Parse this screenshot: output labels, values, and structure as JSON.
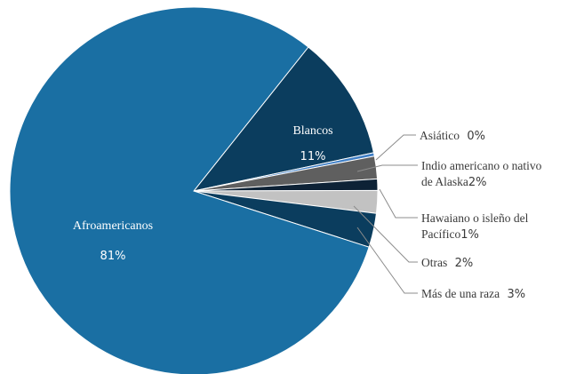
{
  "chart_data": {
    "type": "pie",
    "slices": [
      {
        "name": "Blancos",
        "value": 11,
        "label_text": "Blancos",
        "pct_text": "11%",
        "color": "#0b3d5e"
      },
      {
        "name": "Asiático",
        "value": 0.3,
        "label_text": "Asiático",
        "pct_text": "0%",
        "color": "#3f7fc6"
      },
      {
        "name": "Indio americano o nativo de Alaska",
        "value": 2,
        "label_text": "Indio americano o nativo de Alaska",
        "pct_text": "2%",
        "color": "#5f5f5f"
      },
      {
        "name": "Hawaiano o isleño del Pacífico",
        "value": 1,
        "label_text": "Hawaiano o isleño del Pacífico",
        "pct_text": "1%",
        "color": "#0d2236"
      },
      {
        "name": "Otras",
        "value": 2,
        "label_text": "Otras",
        "pct_text": "2%",
        "color": "#c2c2c2"
      },
      {
        "name": "Más de una raza",
        "value": 3,
        "label_text": "Más de una raza",
        "pct_text": "3%",
        "color": "#0b3d5e"
      },
      {
        "name": "Afroamericanos",
        "value": 81,
        "label_text": "Afroamericanos",
        "pct_text": "81%",
        "color": "#1a6fa3"
      }
    ]
  }
}
